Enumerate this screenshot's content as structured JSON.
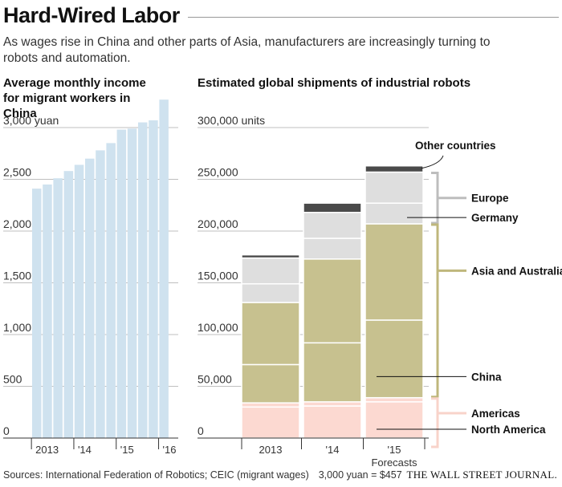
{
  "headline": "Hard-Wired Labor",
  "dek": "As wages rise in China and other parts of Asia, manufacturers are increasingly turning to robots and automation.",
  "source": "Sources: International Federation of Robotics; CEIC (migrant wages)",
  "conversion_note": "3,000 yuan = $457",
  "credit": "THE WALL STREET JOURNAL.",
  "colors": {
    "wage_bar": "#cfe2ef",
    "olive": "#c7c18f",
    "light_gray": "#dedede",
    "dark_gray": "#4a4a4a",
    "pink": "#fcd9d1",
    "bracket_gray": "#bdbdbd",
    "bracket_olive": "#bfb77c",
    "bracket_pink": "#f8d3ca"
  },
  "chart_data": [
    {
      "type": "bar",
      "title": "Average monthly income for migrant workers in China",
      "unit_label": "3,000 yuan",
      "y_ticks": [
        "0",
        "500",
        "1,000",
        "1,500",
        "2,000",
        "2,500",
        "3,000 yuan"
      ],
      "y_tick_values": [
        0,
        500,
        1000,
        1500,
        2000,
        2500,
        3000
      ],
      "ylim": [
        0,
        3300
      ],
      "x_tick_labels": [
        "2013",
        "'14",
        "'15",
        "'16"
      ],
      "x_tick_bar_index": [
        0,
        4,
        8,
        12
      ],
      "values": [
        2410,
        2450,
        2510,
        2580,
        2640,
        2700,
        2780,
        2850,
        2980,
        2990,
        3050,
        3070,
        3270
      ],
      "grid": true
    },
    {
      "type": "stacked_bar",
      "title": "Estimated global shipments of industrial robots",
      "unit_label": "300,000 units",
      "y_ticks": [
        "0",
        "50,000",
        "100,000",
        "150,000",
        "200,000",
        "250,000",
        "300,000 units"
      ],
      "y_tick_values": [
        0,
        50000,
        100000,
        150000,
        200000,
        250000,
        300000
      ],
      "ylim": [
        0,
        300000
      ],
      "categories": [
        "2013",
        "'14",
        "'15"
      ],
      "forecast_label": "Forecasts",
      "series": [
        {
          "name": "North America",
          "values": [
            30000,
            31000,
            35000
          ]
        },
        {
          "name": "Americas",
          "values": [
            4000,
            4000,
            4000
          ]
        },
        {
          "name": "China",
          "values": [
            37000,
            57000,
            75000
          ]
        },
        {
          "name": "Asia and Australia",
          "values": [
            60000,
            81000,
            93000
          ]
        },
        {
          "name": "Germany",
          "values": [
            18000,
            20000,
            20000
          ]
        },
        {
          "name": "Europe",
          "values": [
            25000,
            25000,
            30000
          ]
        },
        {
          "name": "Other countries",
          "values": [
            3000,
            9000,
            6000
          ]
        }
      ],
      "grid": true
    }
  ]
}
